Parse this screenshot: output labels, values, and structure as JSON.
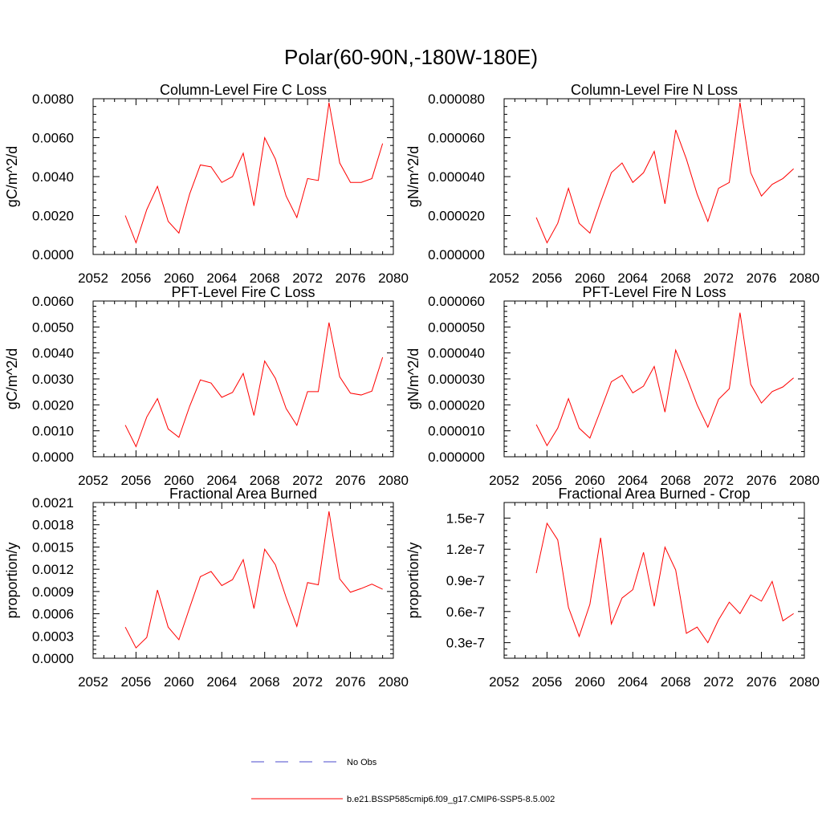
{
  "title": "Polar(60-90N,-180W-180E)",
  "legend": {
    "items": [
      {
        "label": "No Obs",
        "color": "#4a4acc",
        "dash": true
      },
      {
        "label": "b.e21.BSSP585cmip6.f09_g17.CMIP6-SSP5-8.5.002",
        "color": "#ff0000",
        "dash": false
      }
    ]
  },
  "chart_data": [
    {
      "type": "line",
      "title": "Column-Level Fire C Loss",
      "ylabel": "gC/m^2/d",
      "xlim": [
        2052,
        2080
      ],
      "xticks": [
        "2052",
        "2056",
        "2060",
        "2064",
        "2068",
        "2072",
        "2076",
        "2080"
      ],
      "ylim": [
        0,
        0.008
      ],
      "yticks": [
        "0.0000",
        "0.0020",
        "0.0040",
        "0.0060",
        "0.0080"
      ],
      "series": [
        {
          "color": "#ff0000",
          "x": [
            2055,
            2056,
            2057,
            2058,
            2059,
            2060,
            2061,
            2062,
            2063,
            2064,
            2065,
            2066,
            2067,
            2068,
            2069,
            2070,
            2071,
            2072,
            2073,
            2074,
            2075,
            2076,
            2077,
            2078,
            2079
          ],
          "y": [
            0.002,
            0.0006,
            0.0023,
            0.0035,
            0.0017,
            0.0011,
            0.0031,
            0.0046,
            0.0045,
            0.0037,
            0.004,
            0.0052,
            0.0025,
            0.006,
            0.0049,
            0.003,
            0.0019,
            0.0039,
            0.0038,
            0.0078,
            0.0047,
            0.0037,
            0.0037,
            0.0039,
            0.0057
          ]
        }
      ]
    },
    {
      "type": "line",
      "title": "Column-Level Fire N Loss",
      "ylabel": "gN/m^2/d",
      "xlim": [
        2052,
        2080
      ],
      "xticks": [
        "2052",
        "2056",
        "2060",
        "2064",
        "2068",
        "2072",
        "2076",
        "2080"
      ],
      "ylim": [
        0,
        8e-05
      ],
      "yticks": [
        "0.000000",
        "0.000020",
        "0.000040",
        "0.000060",
        "0.000080"
      ],
      "series": [
        {
          "color": "#ff0000",
          "x": [
            2055,
            2056,
            2057,
            2058,
            2059,
            2060,
            2061,
            2062,
            2063,
            2064,
            2065,
            2066,
            2067,
            2068,
            2069,
            2070,
            2071,
            2072,
            2073,
            2074,
            2075,
            2076,
            2077,
            2078,
            2079
          ],
          "y": [
            1.9e-05,
            6e-06,
            1.6e-05,
            3.4e-05,
            1.6e-05,
            1.1e-05,
            2.7e-05,
            4.2e-05,
            4.7e-05,
            3.7e-05,
            4.2e-05,
            5.3e-05,
            2.6e-05,
            6.4e-05,
            4.9e-05,
            3.1e-05,
            1.7e-05,
            3.4e-05,
            3.7e-05,
            7.8e-05,
            4.2e-05,
            3e-05,
            3.6e-05,
            3.9e-05,
            4.4e-05
          ]
        }
      ]
    },
    {
      "type": "line",
      "title": "PFT-Level Fire C Loss",
      "ylabel": "gC/m^2/d",
      "xlim": [
        2052,
        2080
      ],
      "xticks": [
        "2052",
        "2056",
        "2060",
        "2064",
        "2068",
        "2072",
        "2076",
        "2080"
      ],
      "ylim": [
        0,
        0.006
      ],
      "yticks": [
        "0.0000",
        "0.0010",
        "0.0020",
        "0.0030",
        "0.0040",
        "0.0050",
        "0.0060"
      ],
      "series": [
        {
          "color": "#ff0000",
          "x": [
            2055,
            2056,
            2057,
            2058,
            2059,
            2060,
            2061,
            2062,
            2063,
            2064,
            2065,
            2066,
            2067,
            2068,
            2069,
            2070,
            2071,
            2072,
            2073,
            2074,
            2075,
            2076,
            2077,
            2078,
            2079
          ],
          "y": [
            0.00122,
            0.00039,
            0.00153,
            0.00224,
            0.00107,
            0.00075,
            0.00194,
            0.00296,
            0.00284,
            0.00229,
            0.00248,
            0.00321,
            0.00159,
            0.00369,
            0.00302,
            0.00186,
            0.00121,
            0.00251,
            0.00251,
            0.00517,
            0.00308,
            0.00245,
            0.00238,
            0.00253,
            0.00383
          ]
        }
      ]
    },
    {
      "type": "line",
      "title": "PFT-Level Fire N Loss",
      "ylabel": "gN/m^2/d",
      "xlim": [
        2052,
        2080
      ],
      "xticks": [
        "2052",
        "2056",
        "2060",
        "2064",
        "2068",
        "2072",
        "2076",
        "2080"
      ],
      "ylim": [
        0,
        6e-05
      ],
      "yticks": [
        "0.000000",
        "0.000010",
        "0.000020",
        "0.000030",
        "0.000040",
        "0.000050",
        "0.000060"
      ],
      "series": [
        {
          "color": "#ff0000",
          "x": [
            2055,
            2056,
            2057,
            2058,
            2059,
            2060,
            2061,
            2062,
            2063,
            2064,
            2065,
            2066,
            2067,
            2068,
            2069,
            2070,
            2071,
            2072,
            2073,
            2074,
            2075,
            2076,
            2077,
            2078,
            2079
          ],
          "y": [
            1.24e-05,
            4.3e-06,
            1.1e-05,
            2.24e-05,
            1.1e-05,
            7.2e-06,
            1.79e-05,
            2.89e-05,
            3.14e-05,
            2.46e-05,
            2.72e-05,
            3.48e-05,
            1.72e-05,
            4.11e-05,
            3.1e-05,
            2e-05,
            1.14e-05,
            2.21e-05,
            2.62e-05,
            5.55e-05,
            2.79e-05,
            2.07e-05,
            2.51e-05,
            2.69e-05,
            3.04e-05
          ]
        }
      ]
    },
    {
      "type": "line",
      "title": "Fractional Area Burned",
      "ylabel": "proportion/y",
      "xlim": [
        2052,
        2080
      ],
      "xticks": [
        "2052",
        "2056",
        "2060",
        "2064",
        "2068",
        "2072",
        "2076",
        "2080"
      ],
      "ylim": [
        0,
        0.0021
      ],
      "yticks": [
        "0.0000",
        "0.0003",
        "0.0006",
        "0.0009",
        "0.0012",
        "0.0015",
        "0.0018",
        "0.0021"
      ],
      "series": [
        {
          "color": "#ff0000",
          "x": [
            2055,
            2056,
            2057,
            2058,
            2059,
            2060,
            2061,
            2062,
            2063,
            2064,
            2065,
            2066,
            2067,
            2068,
            2069,
            2070,
            2071,
            2072,
            2073,
            2074,
            2075,
            2076,
            2077,
            2078,
            2079
          ],
          "y": [
            0.00042,
            0.00014,
            0.00028,
            0.00092,
            0.00042,
            0.00025,
            0.00068,
            0.0011,
            0.00117,
            0.00098,
            0.00106,
            0.00133,
            0.00067,
            0.00147,
            0.00126,
            0.00082,
            0.00043,
            0.00102,
            0.00099,
            0.00198,
            0.00107,
            0.00089,
            0.00094,
            0.001,
            0.00093
          ]
        }
      ]
    },
    {
      "type": "line",
      "title": "Fractional Area Burned - Crop",
      "ylabel": "proportion/y",
      "xlim": [
        2052,
        2080
      ],
      "xticks": [
        "2052",
        "2056",
        "2060",
        "2064",
        "2068",
        "2072",
        "2076",
        "2080"
      ],
      "ylim": [
        1.5e-08,
        1.65e-07
      ],
      "yticks": [
        "0.3e-7",
        "0.6e-7",
        "0.9e-7",
        "1.2e-7",
        "1.5e-7"
      ],
      "ytick_values": [
        3e-08,
        6e-08,
        9e-08,
        1.2e-07,
        1.5e-07
      ],
      "series": [
        {
          "color": "#ff0000",
          "x": [
            2055,
            2056,
            2057,
            2058,
            2059,
            2060,
            2061,
            2062,
            2063,
            2064,
            2065,
            2066,
            2067,
            2068,
            2069,
            2070,
            2071,
            2072,
            2073,
            2074,
            2075,
            2076,
            2077,
            2078,
            2079
          ],
          "y": [
            9.7e-08,
            1.45e-07,
            1.29e-07,
            6.4e-08,
            3.6e-08,
            6.7e-08,
            1.31e-07,
            4.8e-08,
            7.3e-08,
            8.1e-08,
            1.17e-07,
            6.5e-08,
            1.22e-07,
            1e-07,
            3.9e-08,
            4.5e-08,
            3e-08,
            5.2e-08,
            6.9e-08,
            5.8e-08,
            7.6e-08,
            7e-08,
            8.9e-08,
            5.1e-08,
            5.8e-08
          ]
        }
      ]
    }
  ]
}
